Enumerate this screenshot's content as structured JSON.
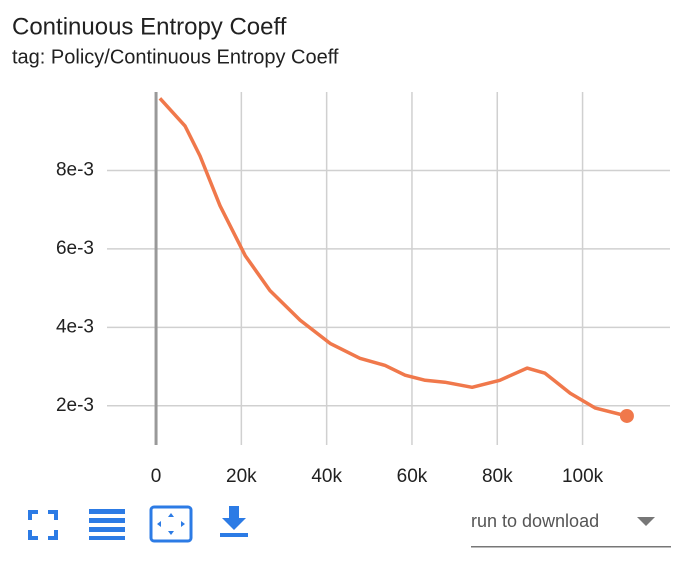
{
  "chart_data": {
    "type": "line",
    "title": "Continuous Entropy Coeff",
    "subtitle": "tag: Policy/Continuous Entropy Coeff",
    "x": [
      900,
      6800,
      10300,
      15000,
      20900,
      26700,
      33800,
      40800,
      47800,
      53700,
      58400,
      63100,
      67700,
      74100,
      80600,
      87000,
      91200,
      97100,
      103000,
      110400
    ],
    "values": [
      0.00984,
      0.00913,
      0.00837,
      0.0071,
      0.00583,
      0.00494,
      0.00418,
      0.00359,
      0.00321,
      0.00303,
      0.00278,
      0.00265,
      0.0026,
      0.00247,
      0.00265,
      0.00296,
      0.00283,
      0.00232,
      0.00194,
      0.00174
    ],
    "color": "#f0784b",
    "xlim": [
      -11500,
      120500
    ],
    "xticks": [
      0,
      {
        "value": 20000,
        "label": "20k"
      },
      {
        "value": 40000,
        "label": "40k"
      },
      {
        "value": 60000,
        "label": "60k"
      },
      {
        "value": 80000,
        "label": "80k"
      },
      {
        "value": 100000,
        "label": "100k"
      }
    ],
    "ylim": [
      0.001,
      0.01
    ],
    "yticks": [
      {
        "value": 0.002,
        "label": "2e-3"
      },
      {
        "value": 0.004,
        "label": "4e-3"
      },
      {
        "value": 0.006,
        "label": "6e-3"
      },
      {
        "value": 0.008,
        "label": "8e-3"
      }
    ],
    "grid": true
  },
  "toolbar": {
    "dropdown": "run to download"
  }
}
